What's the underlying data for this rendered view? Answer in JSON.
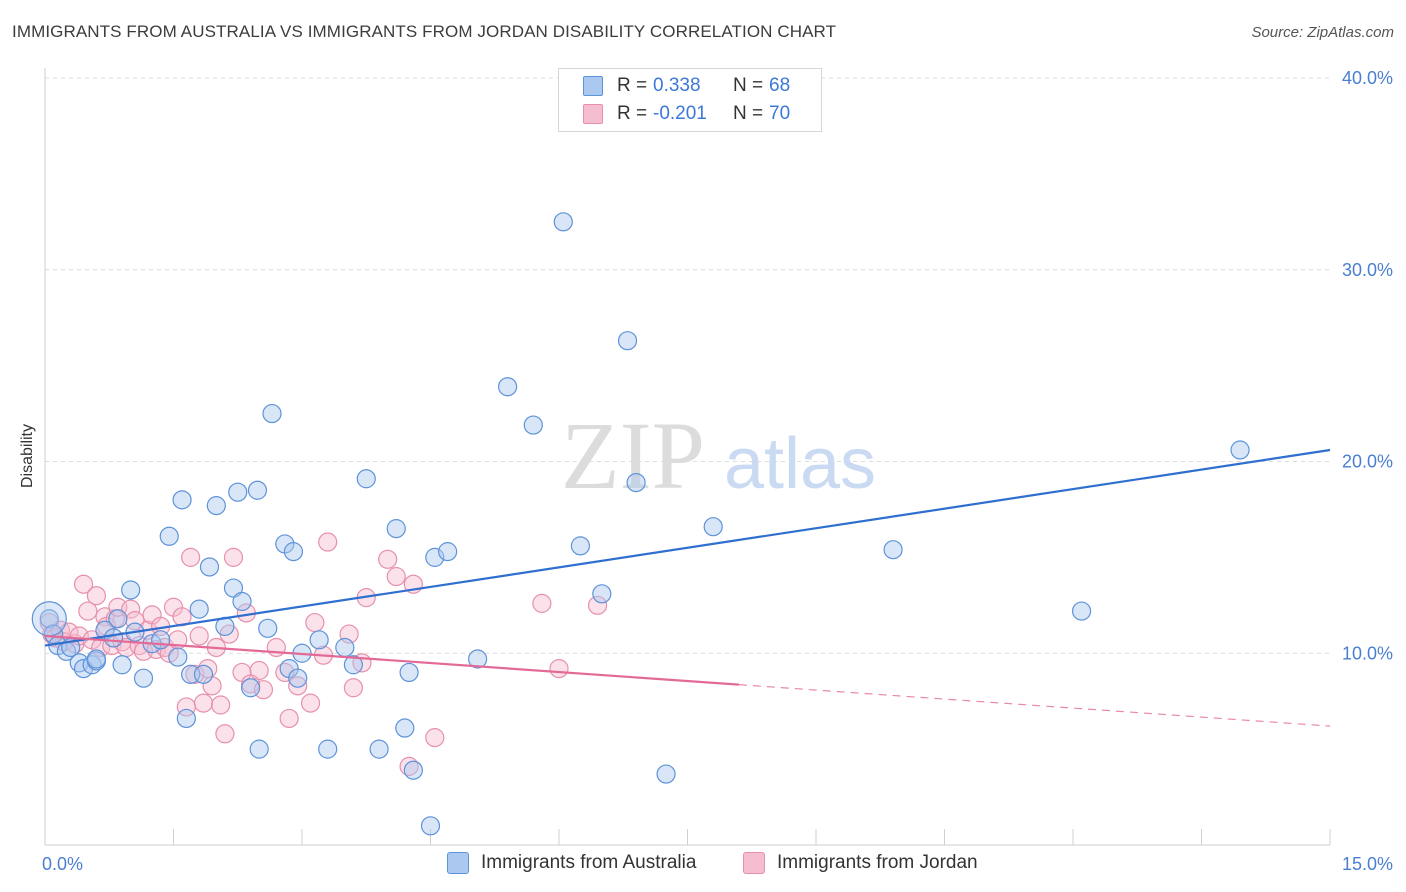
{
  "title": "IMMIGRANTS FROM AUSTRALIA VS IMMIGRANTS FROM JORDAN DISABILITY CORRELATION CHART",
  "source": "Source: ZipAtlas.com",
  "watermark": {
    "zip": "ZIP",
    "atlas": "atlas"
  },
  "legend": {
    "r_label": "R =",
    "n_label": "N =",
    "australia": {
      "r": "0.338",
      "n": "68"
    },
    "jordan": {
      "r": "-0.201",
      "n": "70"
    }
  },
  "colors": {
    "australia_fill": "#aac8f0",
    "australia_stroke": "#5d93d8",
    "australia_line": "#2f6fcf",
    "jordan_fill": "#f6bcd0",
    "jordan_stroke": "#e690ad",
    "jordan_line": "#e36a97",
    "axis_text": "#4a7fd0",
    "grid": "#dcdcdc"
  },
  "chart_data": {
    "type": "scatter",
    "title": "IMMIGRANTS FROM AUSTRALIA VS IMMIGRANTS FROM JORDAN DISABILITY CORRELATION CHART",
    "xlabel": "",
    "ylabel": "Disability",
    "xlim": [
      0,
      15
    ],
    "ylim": [
      0,
      40
    ],
    "x_tick_labels": [
      "0.0%",
      "15.0%"
    ],
    "y_ticks": [
      10,
      20,
      30,
      40
    ],
    "y_tick_labels": [
      "10.0%",
      "20.0%",
      "30.0%",
      "40.0%"
    ],
    "grid": true,
    "legend_position": "top-center",
    "series": [
      {
        "name": "Immigrants from Australia",
        "trend": {
          "x": [
            0,
            15
          ],
          "y": [
            10.4,
            20.6
          ],
          "solid_until": 15
        },
        "points": [
          [
            0.05,
            11.8
          ],
          [
            0.1,
            11.0
          ],
          [
            0.15,
            10.4
          ],
          [
            0.25,
            10.1
          ],
          [
            0.3,
            10.3
          ],
          [
            0.4,
            9.5
          ],
          [
            0.45,
            9.2
          ],
          [
            0.55,
            9.4
          ],
          [
            0.6,
            9.6
          ],
          [
            0.7,
            11.2
          ],
          [
            0.8,
            10.8
          ],
          [
            0.85,
            11.8
          ],
          [
            0.9,
            9.4
          ],
          [
            1.0,
            13.3
          ],
          [
            1.05,
            11.1
          ],
          [
            1.15,
            8.7
          ],
          [
            1.25,
            10.5
          ],
          [
            1.35,
            10.7
          ],
          [
            1.45,
            16.1
          ],
          [
            1.55,
            9.8
          ],
          [
            1.6,
            18.0
          ],
          [
            1.65,
            6.6
          ],
          [
            1.7,
            8.9
          ],
          [
            1.8,
            12.3
          ],
          [
            1.85,
            8.9
          ],
          [
            1.92,
            14.5
          ],
          [
            2.0,
            17.7
          ],
          [
            2.1,
            11.4
          ],
          [
            2.2,
            13.4
          ],
          [
            2.25,
            18.4
          ],
          [
            2.3,
            12.7
          ],
          [
            2.4,
            8.2
          ],
          [
            2.48,
            18.5
          ],
          [
            2.5,
            5.0
          ],
          [
            2.6,
            11.3
          ],
          [
            2.65,
            22.5
          ],
          [
            2.8,
            15.7
          ],
          [
            2.85,
            9.2
          ],
          [
            2.9,
            15.3
          ],
          [
            2.95,
            8.7
          ],
          [
            3.0,
            10.0
          ],
          [
            3.2,
            10.7
          ],
          [
            3.3,
            5.0
          ],
          [
            3.5,
            10.3
          ],
          [
            3.6,
            9.4
          ],
          [
            3.75,
            19.1
          ],
          [
            3.9,
            5.0
          ],
          [
            4.1,
            16.5
          ],
          [
            4.2,
            6.1
          ],
          [
            4.25,
            9.0
          ],
          [
            4.3,
            3.9
          ],
          [
            4.5,
            1.0
          ],
          [
            4.55,
            15.0
          ],
          [
            4.7,
            15.3
          ],
          [
            5.05,
            9.7
          ],
          [
            5.4,
            23.9
          ],
          [
            5.7,
            21.9
          ],
          [
            6.05,
            32.5
          ],
          [
            6.25,
            15.6
          ],
          [
            6.5,
            13.1
          ],
          [
            6.8,
            26.3
          ],
          [
            6.9,
            18.9
          ],
          [
            7.25,
            3.7
          ],
          [
            7.8,
            16.6
          ],
          [
            9.9,
            15.4
          ],
          [
            12.1,
            12.2
          ],
          [
            13.95,
            20.6
          ],
          [
            0.6,
            9.7
          ]
        ]
      },
      {
        "name": "Immigrants from Jordan",
        "trend": {
          "x": [
            0,
            15
          ],
          "y": [
            10.9,
            6.2
          ],
          "solid_until": 8.1
        },
        "points": [
          [
            0.05,
            11.6
          ],
          [
            0.08,
            11.0
          ],
          [
            0.12,
            10.8
          ],
          [
            0.18,
            11.2
          ],
          [
            0.22,
            10.6
          ],
          [
            0.28,
            11.1
          ],
          [
            0.35,
            10.5
          ],
          [
            0.4,
            10.9
          ],
          [
            0.45,
            13.6
          ],
          [
            0.5,
            12.2
          ],
          [
            0.55,
            10.7
          ],
          [
            0.6,
            13.0
          ],
          [
            0.65,
            10.3
          ],
          [
            0.7,
            11.9
          ],
          [
            0.72,
            11.4
          ],
          [
            0.78,
            10.4
          ],
          [
            0.82,
            11.8
          ],
          [
            0.85,
            12.4
          ],
          [
            0.9,
            10.6
          ],
          [
            0.95,
            10.3
          ],
          [
            1.0,
            12.3
          ],
          [
            1.05,
            11.7
          ],
          [
            1.1,
            10.4
          ],
          [
            1.15,
            10.1
          ],
          [
            1.2,
            11.2
          ],
          [
            1.25,
            12.0
          ],
          [
            1.3,
            10.2
          ],
          [
            1.35,
            11.4
          ],
          [
            1.4,
            10.3
          ],
          [
            1.45,
            10.0
          ],
          [
            1.5,
            12.4
          ],
          [
            1.55,
            10.7
          ],
          [
            1.6,
            11.9
          ],
          [
            1.65,
            7.2
          ],
          [
            1.7,
            15.0
          ],
          [
            1.75,
            8.9
          ],
          [
            1.8,
            10.9
          ],
          [
            1.85,
            7.4
          ],
          [
            1.9,
            9.2
          ],
          [
            1.95,
            8.3
          ],
          [
            2.0,
            10.3
          ],
          [
            2.05,
            7.3
          ],
          [
            2.1,
            5.8
          ],
          [
            2.15,
            11.0
          ],
          [
            2.2,
            15.0
          ],
          [
            2.3,
            9.0
          ],
          [
            2.35,
            12.1
          ],
          [
            2.4,
            8.4
          ],
          [
            2.5,
            9.1
          ],
          [
            2.55,
            8.1
          ],
          [
            2.7,
            10.3
          ],
          [
            2.8,
            9.0
          ],
          [
            2.85,
            6.6
          ],
          [
            2.95,
            8.3
          ],
          [
            3.1,
            7.4
          ],
          [
            3.15,
            11.6
          ],
          [
            3.25,
            9.9
          ],
          [
            3.3,
            15.8
          ],
          [
            3.55,
            11.0
          ],
          [
            3.6,
            8.2
          ],
          [
            3.7,
            9.5
          ],
          [
            3.75,
            12.9
          ],
          [
            4.0,
            14.9
          ],
          [
            4.1,
            14.0
          ],
          [
            4.25,
            4.1
          ],
          [
            4.3,
            13.6
          ],
          [
            4.55,
            5.6
          ],
          [
            5.8,
            12.6
          ],
          [
            6.45,
            12.5
          ],
          [
            6.0,
            9.2
          ]
        ]
      }
    ]
  },
  "bottom_legend": {
    "australia": "Immigrants from Australia",
    "jordan": "Immigrants from Jordan"
  }
}
